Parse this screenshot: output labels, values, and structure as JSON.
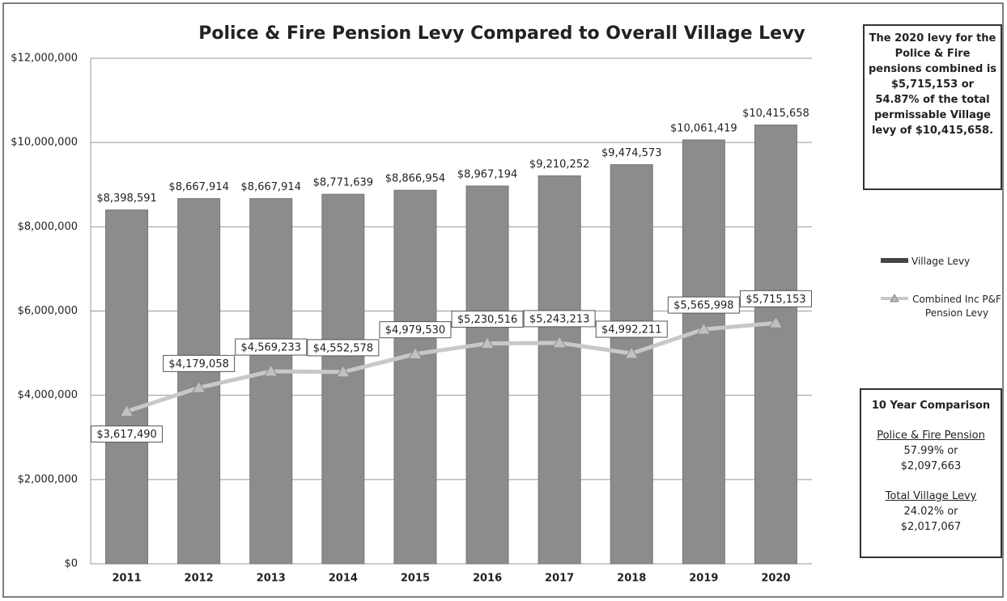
{
  "chart_data": {
    "type": "bar",
    "title": "Police & Fire Pension Levy Compared to Overall Village Levy",
    "categories": [
      "2011",
      "2012",
      "2013",
      "2014",
      "2015",
      "2016",
      "2017",
      "2018",
      "2019",
      "2020"
    ],
    "series": [
      {
        "name": "Village Levy",
        "type": "bar",
        "color": "#8c8c8c",
        "values": [
          8398591,
          8667914,
          8667914,
          8771639,
          8866954,
          8967194,
          9210252,
          9474573,
          10061419,
          10415658
        ],
        "value_labels": [
          "$8,398,591",
          "$8,667,914",
          "$8,667,914",
          "$8,771,639",
          "$8,866,954",
          "$8,967,194",
          "$9,210,252",
          "$9,474,573",
          "$10,061,419",
          "$10,415,658"
        ]
      },
      {
        "name": "Combined Inc P&F Pension Levy",
        "type": "line",
        "color": "#c8c8c8",
        "values": [
          3617490,
          4179058,
          4569233,
          4552578,
          4979530,
          5230516,
          5243213,
          4992211,
          5565998,
          5715153
        ],
        "value_labels": [
          "$3,617,490",
          "$4,179,058",
          "$4,569,233",
          "$4,552,578",
          "$4,979,530",
          "$5,230,516",
          "$5,243,213",
          "$4,992,211",
          "$5,565,998",
          "$5,715,153"
        ]
      }
    ],
    "ylim": [
      0,
      12000000
    ],
    "yticks": [
      {
        "value": 0,
        "label": "$0"
      },
      {
        "value": 2000000,
        "label": "$2,000,000"
      },
      {
        "value": 4000000,
        "label": "$4,000,000"
      },
      {
        "value": 6000000,
        "label": "$6,000,000"
      },
      {
        "value": 8000000,
        "label": "$8,000,000"
      },
      {
        "value": 10000000,
        "label": "$10,000,000"
      },
      {
        "value": 12000000,
        "label": "$12,000,000"
      }
    ],
    "grid": true,
    "legend": "right",
    "annotations": [
      "The 2020 levy for the Police & Fire pensions combined is $5,715,153 or 54.87% of the total permissable Village levy of $10,415,658.",
      "10 Year Comparison",
      "Police & Fire Pension",
      "57.99% or",
      "$2,097,663",
      "Total Village Levy",
      "24.02% or",
      "$2,017,067"
    ]
  }
}
